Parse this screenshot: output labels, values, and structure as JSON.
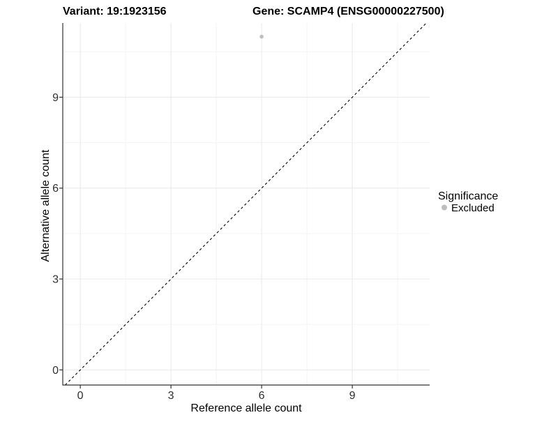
{
  "chart_data": {
    "type": "scatter",
    "titles": {
      "variant": "Variant: 19:1923156",
      "gene": "Gene: SCAMP4 (ENSG00000227500)"
    },
    "xlabel": "Reference allele count",
    "ylabel": "Alternative allele count",
    "x_ticks": [
      0,
      3,
      6,
      9
    ],
    "y_ticks": [
      0,
      3,
      6,
      9
    ],
    "x_minor_ticks": [
      1.5,
      4.5,
      7.5,
      10.5
    ],
    "y_minor_ticks": [
      1.5,
      4.5,
      7.5,
      10.5
    ],
    "xlim": [
      -0.58,
      11.56
    ],
    "ylim": [
      -0.5,
      11.45
    ],
    "grid": true,
    "legend_position": "right",
    "identity_line": {
      "equation": "y = x",
      "style": "dashed",
      "color": "#000000"
    },
    "points": [
      {
        "x": 6,
        "y": 11,
        "significance": "Excluded",
        "color": "#bebebe"
      }
    ],
    "legend": {
      "title": "Significance",
      "entries": [
        {
          "label": "Excluded",
          "color": "#bebebe"
        }
      ]
    },
    "colors": {
      "background": "#ffffff",
      "grid_major": "#e8e8e8",
      "grid_minor": "#f4f4f4",
      "axis": "#333333",
      "point_excluded": "#bebebe"
    }
  }
}
